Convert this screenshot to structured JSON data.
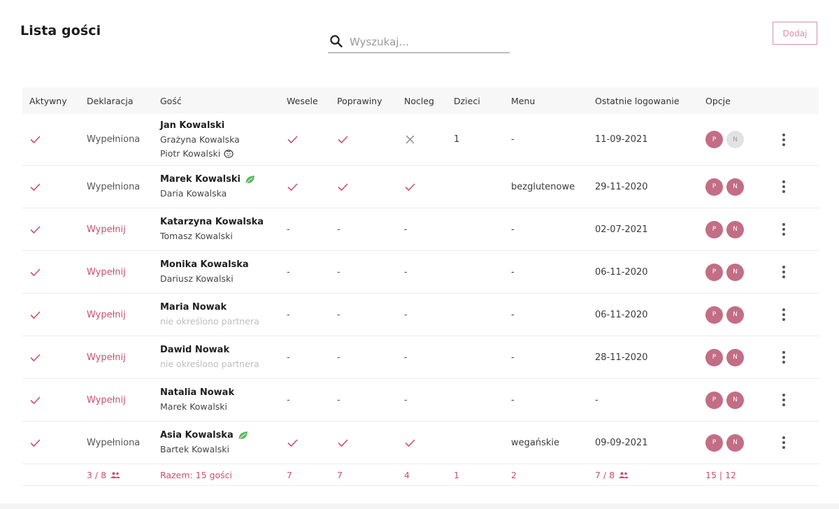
{
  "header": {
    "title": "Lista gości",
    "search_placeholder": "Wyszukaj...",
    "add_label": "Dodaj"
  },
  "colors": {
    "accent": "#c9506f",
    "badge_on": "#c36d86",
    "badge_off": "#e2e2e2",
    "leaf": "#5cb85c"
  },
  "table": {
    "columns": [
      "Aktywny",
      "Deklaracja",
      "Gość",
      "Wesele",
      "Poprawiny",
      "Nocleg",
      "Dzieci",
      "Menu",
      "Ostatnie logowanie",
      "Opcje"
    ],
    "rows": [
      {
        "declaration": "Wypełniona",
        "declaration_done": true,
        "main_guest": "Jan Kowalski",
        "main_leaf": false,
        "companions": [
          {
            "name": "Grażyna Kowalska",
            "icon": null,
            "muted": false
          },
          {
            "name": "Piotr Kowalski",
            "icon": "child-face-icon",
            "muted": false
          }
        ],
        "wesele": "check",
        "poprawiny": "check",
        "nocleg": "cross",
        "dzieci": "1",
        "menu": "-",
        "last_login": "11-09-2021",
        "badge_p": "P",
        "badge_n": "N",
        "n_active": false,
        "tall": true
      },
      {
        "declaration": "Wypełniona",
        "declaration_done": true,
        "main_guest": "Marek Kowalski",
        "main_leaf": true,
        "companions": [
          {
            "name": "Daria Kowalska",
            "icon": null,
            "muted": false
          }
        ],
        "wesele": "check",
        "poprawiny": "check",
        "nocleg": "check",
        "dzieci": "",
        "menu": "bezglutenowe",
        "last_login": "29-11-2020",
        "badge_p": "P",
        "badge_n": "N",
        "n_active": true,
        "tall": false
      },
      {
        "declaration": "Wypełnij",
        "declaration_done": false,
        "main_guest": "Katarzyna Kowalska",
        "main_leaf": false,
        "companions": [
          {
            "name": "Tomasz Kowalski",
            "icon": null,
            "muted": false
          }
        ],
        "wesele": "-",
        "poprawiny": "-",
        "nocleg": "-",
        "dzieci": "",
        "menu": "-",
        "last_login": "02-07-2021",
        "badge_p": "P",
        "badge_n": "N",
        "n_active": true,
        "tall": false
      },
      {
        "declaration": "Wypełnij",
        "declaration_done": false,
        "main_guest": "Monika Kowalska",
        "main_leaf": false,
        "companions": [
          {
            "name": "Dariusz Kowalski",
            "icon": null,
            "muted": false
          }
        ],
        "wesele": "-",
        "poprawiny": "-",
        "nocleg": "-",
        "dzieci": "",
        "menu": "-",
        "last_login": "06-11-2020",
        "badge_p": "P",
        "badge_n": "N",
        "n_active": true,
        "tall": false
      },
      {
        "declaration": "Wypełnij",
        "declaration_done": false,
        "main_guest": "Maria Nowak",
        "main_leaf": false,
        "companions": [
          {
            "name": "nie określono partnera",
            "icon": null,
            "muted": true
          }
        ],
        "wesele": "-",
        "poprawiny": "-",
        "nocleg": "-",
        "dzieci": "",
        "menu": "-",
        "last_login": "06-11-2020",
        "badge_p": "P",
        "badge_n": "N",
        "n_active": true,
        "tall": false
      },
      {
        "declaration": "Wypełnij",
        "declaration_done": false,
        "main_guest": "Dawid Nowak",
        "main_leaf": false,
        "companions": [
          {
            "name": "nie określono partnera",
            "icon": null,
            "muted": true
          }
        ],
        "wesele": "-",
        "poprawiny": "-",
        "nocleg": "-",
        "dzieci": "",
        "menu": "-",
        "last_login": "28-11-2020",
        "badge_p": "P",
        "badge_n": "N",
        "n_active": true,
        "tall": false
      },
      {
        "declaration": "Wypełnij",
        "declaration_done": false,
        "main_guest": "Natalia Nowak",
        "main_leaf": false,
        "companions": [
          {
            "name": "Marek Kowalski",
            "icon": null,
            "muted": false
          }
        ],
        "wesele": "-",
        "poprawiny": "-",
        "nocleg": "-",
        "dzieci": "",
        "menu": "-",
        "last_login": "-",
        "badge_p": "P",
        "badge_n": "N",
        "n_active": true,
        "tall": false
      },
      {
        "declaration": "Wypełniona",
        "declaration_done": true,
        "main_guest": "Asia Kowalska",
        "main_leaf": true,
        "companions": [
          {
            "name": "Bartek Kowalski",
            "icon": null,
            "muted": false
          }
        ],
        "wesele": "check",
        "poprawiny": "check",
        "nocleg": "check",
        "dzieci": "",
        "menu": "wegańskie",
        "last_login": "09-09-2021",
        "badge_p": "P",
        "badge_n": "N",
        "n_active": true,
        "tall": false
      }
    ],
    "footer": {
      "declarations": "3 / 8",
      "guests": "Razem: 15 gości",
      "wesele": "7",
      "poprawiny": "7",
      "nocleg": "4",
      "dzieci": "1",
      "menu": "2",
      "logins": "7 / 8",
      "options": "15 | 12"
    }
  }
}
